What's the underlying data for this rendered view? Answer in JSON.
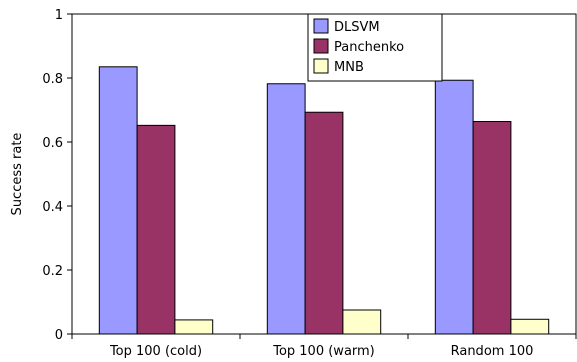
{
  "chart_data": {
    "type": "bar",
    "categories": [
      "Top 100 (cold)",
      "Top 100 (warm)",
      "Random 100"
    ],
    "series": [
      {
        "name": "DLSVM",
        "color": "#9999ff",
        "values": [
          0.835,
          0.782,
          0.793
        ]
      },
      {
        "name": "Panchenko",
        "color": "#993366",
        "values": [
          0.652,
          0.693,
          0.664
        ]
      },
      {
        "name": "MNB",
        "color": "#ffffcc",
        "values": [
          0.044,
          0.075,
          0.046
        ]
      }
    ],
    "title": "",
    "xlabel": "",
    "ylabel": "Success rate",
    "ylim": [
      0,
      1
    ],
    "yticks": [
      "0",
      "0.2",
      "0.4",
      "0.6",
      "0.8",
      "1"
    ],
    "grid": false,
    "legend_position": "top-center"
  }
}
